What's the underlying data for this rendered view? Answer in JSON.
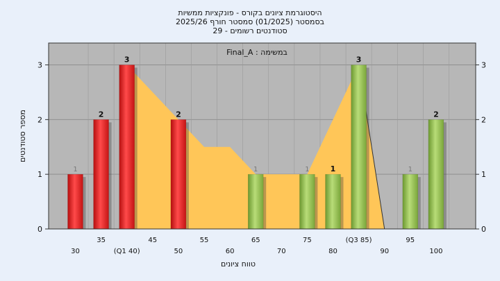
{
  "header": {
    "line1": "היסטוגרמת ציונים בקורס - פונקציות ממשיות",
    "line2": "בסמסטר  (01/2025)  סמסטר חורף 2025/26",
    "line3": "סטודנטים רשומים - 29"
  },
  "colors": {
    "background": "#e9f0fa",
    "plot_area": "#b7b7b7",
    "fail_bar": "#e62a2a",
    "pass_bar": "#92bf4e",
    "area": "#ffc658"
  },
  "chart_data": {
    "type": "bar",
    "title": "היסטוגרמת ציונים בקורס - פונקציות ממשיות",
    "subtitle": "במשימה : Final_A",
    "xlabel": "טווח ציונים",
    "ylabel": "מספר סטודנטים",
    "ylim": [
      0,
      3.4
    ],
    "yticks": [
      0,
      1,
      2,
      3
    ],
    "grid": true,
    "legend": "none",
    "categories": [
      "30",
      "35",
      "(Q1 40)",
      "45",
      "50",
      "55",
      "60",
      "65",
      "70",
      "75",
      "80",
      "(Q3 85)",
      "90",
      "95",
      "100"
    ],
    "category_values": [
      30,
      35,
      40,
      45,
      50,
      55,
      60,
      65,
      70,
      75,
      80,
      85,
      90,
      95,
      100
    ],
    "series": [
      {
        "kind": "bar",
        "values": [
          1,
          2,
          3,
          0,
          2,
          0,
          0,
          1,
          0,
          1,
          1,
          3,
          0,
          1,
          2
        ],
        "data_labels": [
          "1",
          "2",
          "3",
          "",
          "2",
          "",
          "",
          "1",
          "",
          "1",
          "1",
          "3",
          "",
          "1",
          "2"
        ],
        "bar_color": [
          "fail",
          "fail",
          "fail",
          "fail",
          "fail",
          "fail",
          "pass",
          "pass",
          "pass",
          "pass",
          "pass",
          "pass",
          "pass",
          "pass",
          "pass"
        ]
      },
      {
        "kind": "area",
        "points": [
          [
            40,
            3
          ],
          [
            50,
            2
          ],
          [
            55,
            1.5
          ],
          [
            60,
            1.5
          ],
          [
            65,
            1
          ],
          [
            75,
            1
          ],
          [
            80,
            2
          ],
          [
            85,
            3
          ],
          [
            90,
            0
          ]
        ]
      }
    ]
  }
}
